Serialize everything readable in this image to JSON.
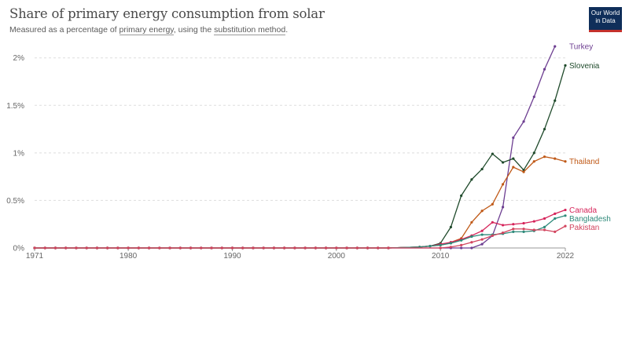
{
  "title": "Share of primary energy consumption from solar",
  "subtitle": {
    "pre": "Measured as a percentage of ",
    "link1": "primary energy",
    "mid": ", using the ",
    "link2": "substitution method",
    "post": "."
  },
  "logo": {
    "line1": "Our World",
    "line2": "in Data"
  },
  "chart_data": {
    "type": "line",
    "title": "Share of primary energy consumption from solar",
    "subtitle": "Measured as a percentage of primary energy, using the substitution method.",
    "xlabel": "",
    "ylabel": "",
    "xlim": [
      1971,
      2022
    ],
    "ylim": [
      0,
      2.1
    ],
    "x_ticks": [
      1971,
      1980,
      1990,
      2000,
      2010,
      2022
    ],
    "y_ticks": [
      {
        "value": 0,
        "label": "0%"
      },
      {
        "value": 0.5,
        "label": "0.5%"
      },
      {
        "value": 1,
        "label": "1%"
      },
      {
        "value": 1.5,
        "label": "1.5%"
      },
      {
        "value": 2,
        "label": "2%"
      }
    ],
    "grid": "horizontal-dashed",
    "legend": "labels at line ends (right)",
    "series": [
      {
        "name": "Turkey",
        "color": "#6d3e91",
        "points": [
          [
            1971,
            0
          ],
          [
            2005,
            0
          ],
          [
            2010,
            0
          ],
          [
            2011,
            0
          ],
          [
            2012,
            0
          ],
          [
            2013,
            0
          ],
          [
            2014,
            0.04
          ],
          [
            2015,
            0.13
          ],
          [
            2016,
            0.43
          ],
          [
            2017,
            1.16
          ],
          [
            2018,
            1.33
          ],
          [
            2019,
            1.59
          ],
          [
            2020,
            1.88
          ],
          [
            2021,
            2.12
          ]
        ]
      },
      {
        "name": "Slovenia",
        "color": "#1f4a2b",
        "points": [
          [
            1971,
            0
          ],
          [
            2005,
            0
          ],
          [
            2008,
            0.01
          ],
          [
            2009,
            0.02
          ],
          [
            2010,
            0.05
          ],
          [
            2011,
            0.22
          ],
          [
            2012,
            0.55
          ],
          [
            2013,
            0.72
          ],
          [
            2014,
            0.83
          ],
          [
            2015,
            0.99
          ],
          [
            2016,
            0.9
          ],
          [
            2017,
            0.94
          ],
          [
            2018,
            0.82
          ],
          [
            2019,
            1.0
          ],
          [
            2020,
            1.25
          ],
          [
            2021,
            1.55
          ],
          [
            2022,
            1.92
          ]
        ]
      },
      {
        "name": "Thailand",
        "color": "#c05917",
        "points": [
          [
            1971,
            0
          ],
          [
            2005,
            0
          ],
          [
            2008,
            0.01
          ],
          [
            2009,
            0.02
          ],
          [
            2010,
            0.03
          ],
          [
            2011,
            0.06
          ],
          [
            2012,
            0.1
          ],
          [
            2013,
            0.27
          ],
          [
            2014,
            0.39
          ],
          [
            2015,
            0.46
          ],
          [
            2016,
            0.67
          ],
          [
            2017,
            0.85
          ],
          [
            2018,
            0.8
          ],
          [
            2019,
            0.91
          ],
          [
            2020,
            0.96
          ],
          [
            2021,
            0.94
          ],
          [
            2022,
            0.91
          ]
        ]
      },
      {
        "name": "Canada",
        "color": "#d6245a",
        "points": [
          [
            1971,
            0
          ],
          [
            2005,
            0
          ],
          [
            2008,
            0.01
          ],
          [
            2009,
            0.02
          ],
          [
            2010,
            0.04
          ],
          [
            2011,
            0.06
          ],
          [
            2012,
            0.09
          ],
          [
            2013,
            0.13
          ],
          [
            2014,
            0.18
          ],
          [
            2015,
            0.27
          ],
          [
            2016,
            0.24
          ],
          [
            2017,
            0.25
          ],
          [
            2018,
            0.26
          ],
          [
            2019,
            0.28
          ],
          [
            2020,
            0.31
          ],
          [
            2021,
            0.36
          ],
          [
            2022,
            0.4
          ]
        ]
      },
      {
        "name": "Bangladesh",
        "color": "#2e8a7a",
        "points": [
          [
            1971,
            0
          ],
          [
            2005,
            0
          ],
          [
            2008,
            0.01
          ],
          [
            2009,
            0.02
          ],
          [
            2010,
            0.03
          ],
          [
            2011,
            0.05
          ],
          [
            2012,
            0.08
          ],
          [
            2013,
            0.12
          ],
          [
            2014,
            0.14
          ],
          [
            2015,
            0.14
          ],
          [
            2016,
            0.15
          ],
          [
            2017,
            0.17
          ],
          [
            2018,
            0.17
          ],
          [
            2019,
            0.18
          ],
          [
            2020,
            0.22
          ],
          [
            2021,
            0.31
          ],
          [
            2022,
            0.34
          ]
        ]
      },
      {
        "name": "Pakistan",
        "color": "#d2445e",
        "points": [
          [
            1971,
            0
          ],
          [
            2005,
            0
          ],
          [
            2010,
            0
          ],
          [
            2011,
            0.01
          ],
          [
            2012,
            0.03
          ],
          [
            2013,
            0.06
          ],
          [
            2014,
            0.09
          ],
          [
            2015,
            0.13
          ],
          [
            2016,
            0.16
          ],
          [
            2017,
            0.2
          ],
          [
            2018,
            0.2
          ],
          [
            2019,
            0.19
          ],
          [
            2020,
            0.19
          ],
          [
            2021,
            0.17
          ],
          [
            2022,
            0.23
          ]
        ]
      }
    ]
  }
}
